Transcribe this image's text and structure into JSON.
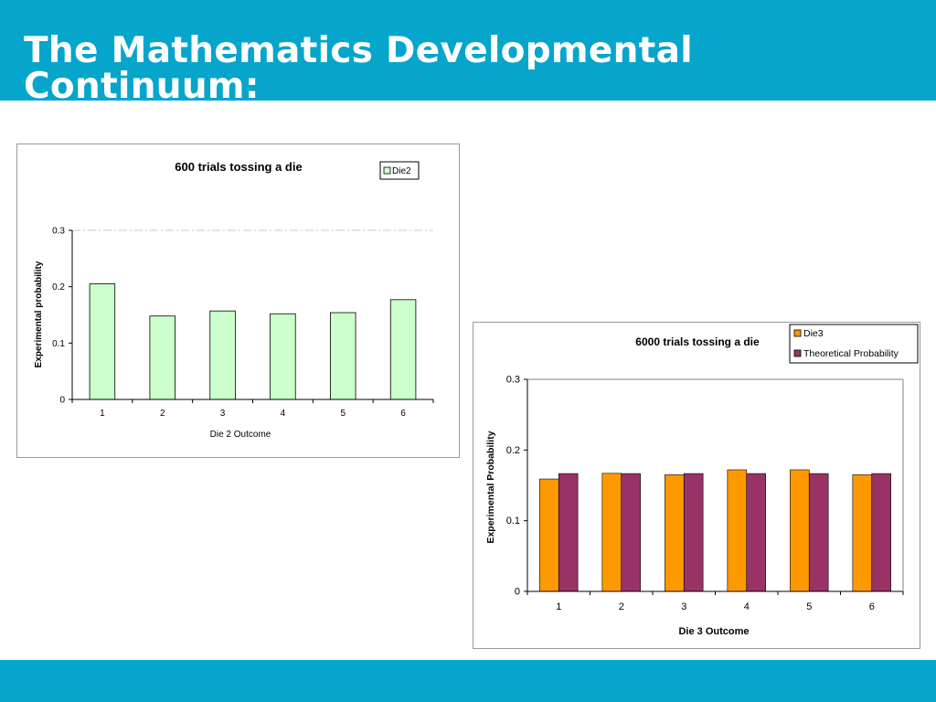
{
  "slide": {
    "title": "The Mathematics Developmental Continuum:",
    "band_color": "#06a5cc"
  },
  "chart_data": [
    {
      "type": "bar",
      "title": "600 trials tossing a die",
      "xlabel": "Die 2 Outcome",
      "ylabel": "Experimental probability",
      "categories": [
        "1",
        "2",
        "3",
        "4",
        "5",
        "6"
      ],
      "series": [
        {
          "name": "Die2",
          "values": [
            0.205,
            0.148,
            0.157,
            0.152,
            0.154,
            0.177
          ],
          "color": "#ccffcc"
        }
      ],
      "ylim": [
        0,
        0.3
      ],
      "yticks": [
        "0",
        "0.1",
        "0.2",
        "0.3"
      ],
      "legend": "top-right",
      "grid": false
    },
    {
      "type": "bar",
      "title": "6000 trials tossing a die",
      "xlabel": "Die 3 Outcome",
      "ylabel": "Experimental Probability",
      "categories": [
        "1",
        "2",
        "3",
        "4",
        "5",
        "6"
      ],
      "series": [
        {
          "name": "Die3",
          "values": [
            0.159,
            0.167,
            0.165,
            0.172,
            0.172,
            0.165
          ],
          "color": "#ff9900"
        },
        {
          "name": "Theoretical Probability",
          "values": [
            0.1667,
            0.1667,
            0.1667,
            0.1667,
            0.1667,
            0.1667
          ],
          "color": "#993366"
        }
      ],
      "ylim": [
        0,
        0.3
      ],
      "yticks": [
        "0",
        "0.1",
        "0.2",
        "0.3"
      ],
      "legend": "top-right",
      "grid": false
    }
  ]
}
